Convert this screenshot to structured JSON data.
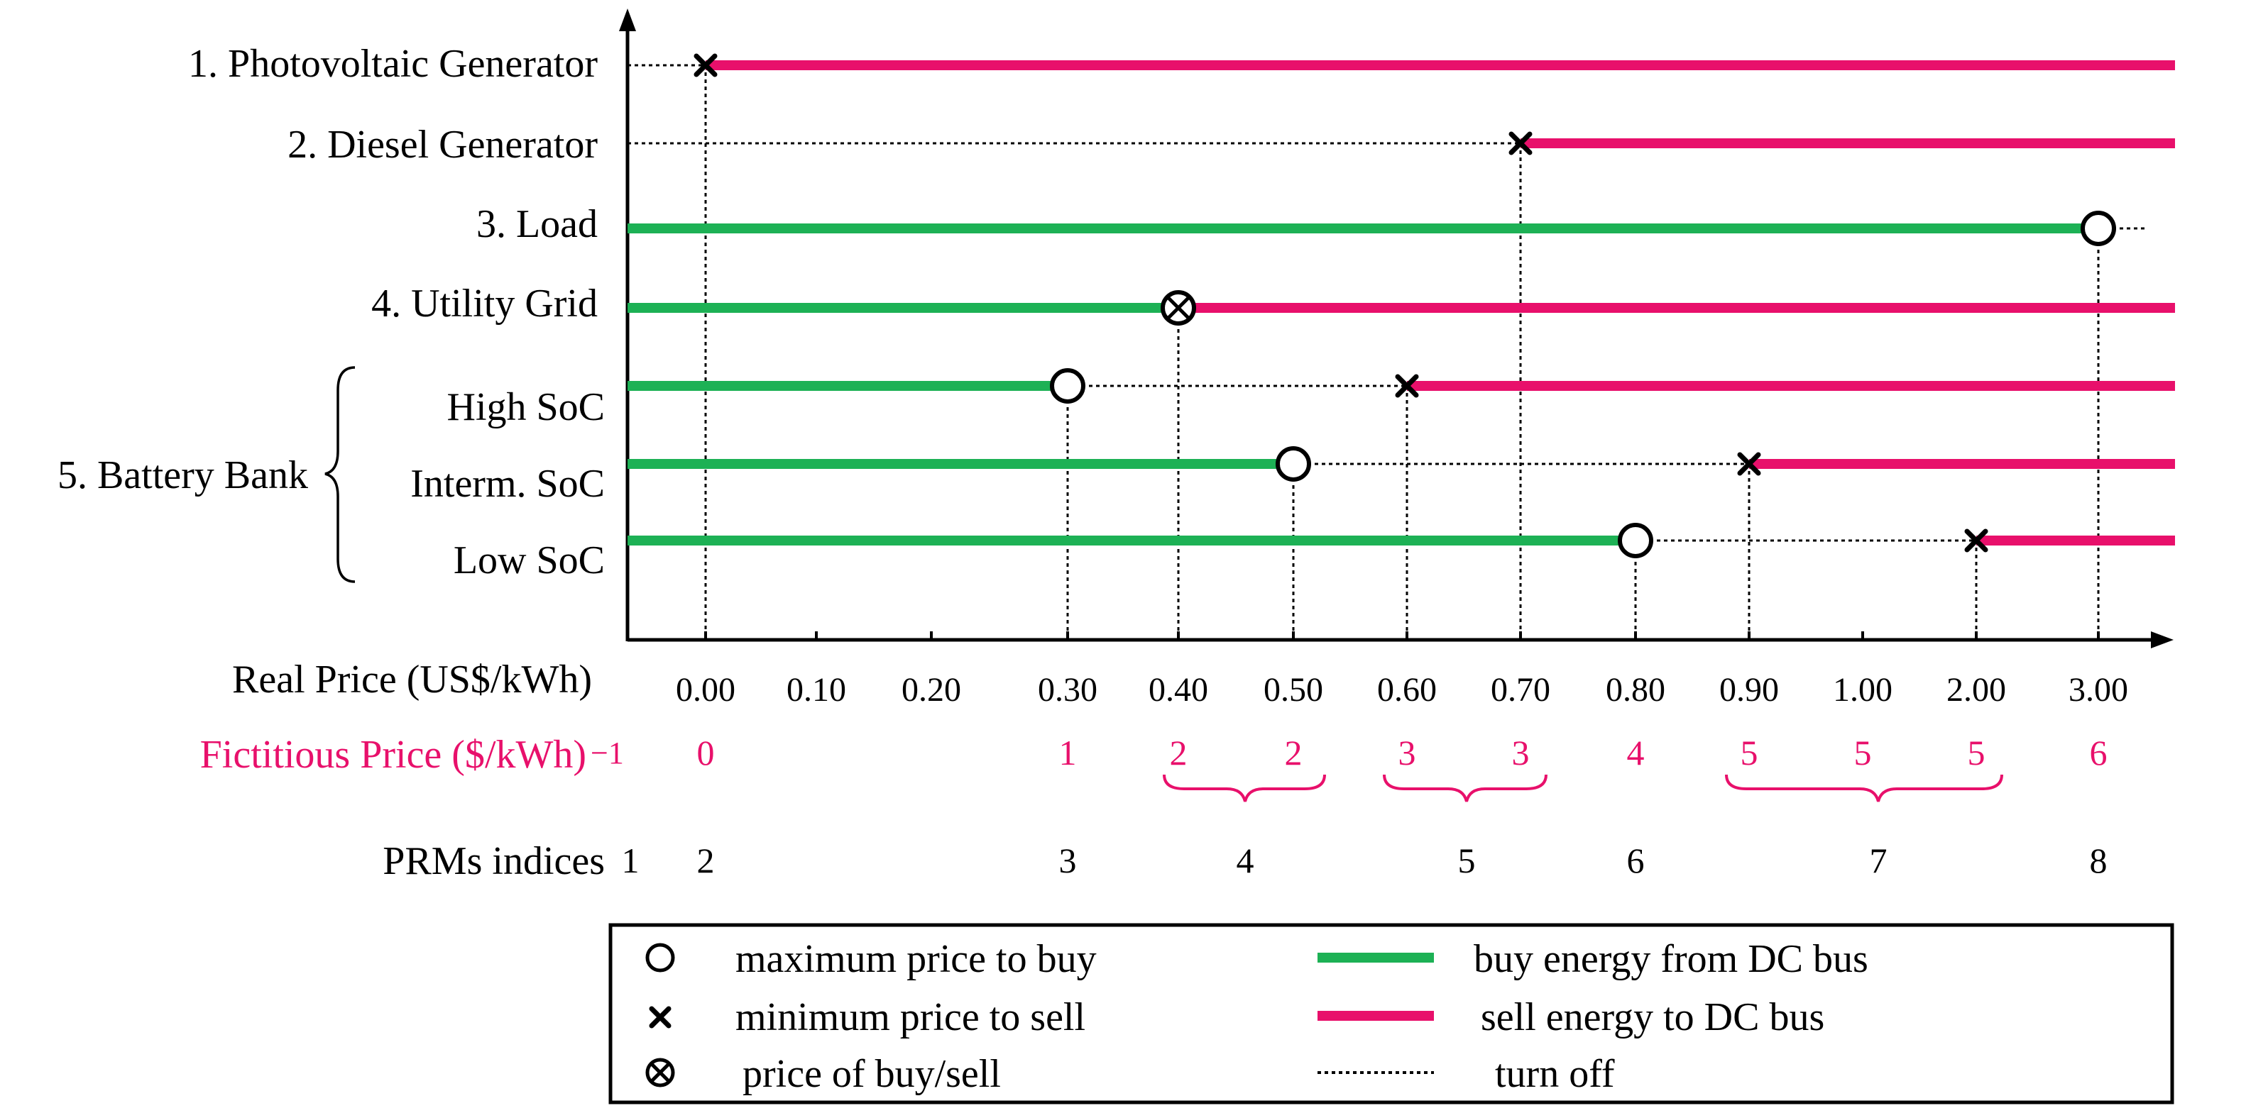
{
  "rows": [
    {
      "label": "1. Photovoltaic Generator",
      "buy_end": null,
      "marker_type": "x",
      "marker_price": "0.00",
      "sell_start": "0.00"
    },
    {
      "label": "2. Diesel Generator",
      "buy_end": null,
      "marker_type": "x",
      "marker_price": "0.70",
      "sell_start": "0.70"
    },
    {
      "label": "3. Load",
      "buy_end": "3.00",
      "marker_type": "o",
      "marker_price": "3.00",
      "sell_start": null
    },
    {
      "label": "4. Utility Grid",
      "buy_end": "0.40",
      "marker_type": "ox",
      "marker_price": "0.40",
      "sell_start": "0.40"
    },
    {
      "label": "High SoC",
      "buy_end": "0.30",
      "marker_type": "o",
      "marker_price": "0.30",
      "second_marker_type": "x",
      "second_marker_price": "0.60",
      "sell_start": "0.60"
    },
    {
      "label": "Interm. SoC",
      "buy_end": "0.50",
      "marker_type": "o",
      "marker_price": "0.50",
      "second_marker_type": "x",
      "second_marker_price": "0.90",
      "sell_start": "0.90"
    },
    {
      "label": "Low SoC",
      "buy_end": "0.80",
      "marker_type": "o",
      "marker_price": "0.80",
      "second_marker_type": "x",
      "second_marker_price": "2.00",
      "sell_start": "2.00"
    }
  ],
  "battery_group_label": "5. Battery Bank",
  "real_price": {
    "label": "Real Price (US$/kWh)",
    "ticks": [
      "0.00",
      "0.10",
      "0.20",
      "0.30",
      "0.40",
      "0.50",
      "0.60",
      "0.70",
      "0.80",
      "0.90",
      "1.00",
      "2.00",
      "3.00"
    ]
  },
  "fictitious_price": {
    "label": "Fictitious Price ($/kWh)",
    "exponent": "−1",
    "values": [
      "0",
      "",
      "",
      "1",
      "2",
      "2",
      "3",
      "3",
      "4",
      "5",
      "5",
      "5",
      "6"
    ]
  },
  "prm": {
    "label": "PRMs indices",
    "values": [
      "1",
      "2",
      "3",
      "4",
      "5",
      "6",
      "7",
      "8"
    ]
  },
  "legend": {
    "max_buy": "maximum price to buy",
    "min_sell": "minimum price to sell",
    "buy_sell": "price of buy/sell",
    "buy_line": "buy energy from DC bus",
    "sell_line": "sell energy to DC bus",
    "turn_off": "turn off"
  },
  "colors": {
    "buy": "#1db155",
    "sell": "#e8106b",
    "fictitious": "#e8106b",
    "ink": "#000000"
  }
}
